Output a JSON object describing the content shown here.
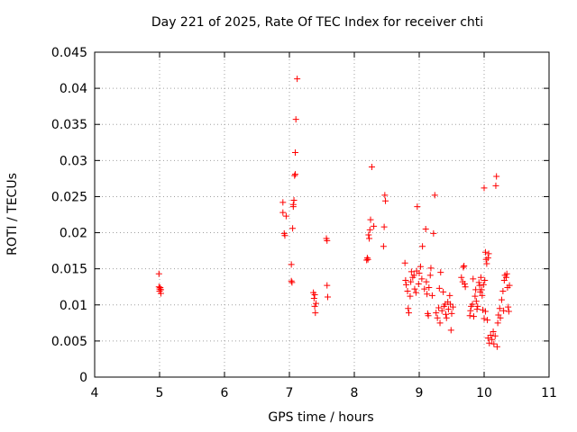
{
  "chart_data": {
    "type": "scatter",
    "title": "Day 221 of 2025, Rate Of TEC Index for receiver chti",
    "xlabel": "GPS time / hours",
    "ylabel": "ROTI / TECUs",
    "xlim": [
      4,
      11
    ],
    "ylim": [
      0,
      0.045
    ],
    "x_ticks": [
      "4",
      "5",
      "6",
      "7",
      "8",
      "9",
      "10",
      "11"
    ],
    "y_ticks": [
      "0",
      "0.005",
      "0.01",
      "0.015",
      "0.02",
      "0.025",
      "0.03",
      "0.035",
      "0.04",
      "0.045"
    ],
    "grid": true,
    "marker": "+",
    "color": "#ff0000",
    "points": [
      [
        4.99,
        0.0143
      ],
      [
        4.99,
        0.0125
      ],
      [
        5.0,
        0.0122
      ],
      [
        5.0,
        0.0119
      ],
      [
        5.01,
        0.0124
      ],
      [
        5.02,
        0.0116
      ],
      [
        5.02,
        0.0121
      ],
      [
        6.9,
        0.0242
      ],
      [
        6.9,
        0.0228
      ],
      [
        6.92,
        0.0199
      ],
      [
        6.93,
        0.0196
      ],
      [
        6.95,
        0.0223
      ],
      [
        7.03,
        0.0156
      ],
      [
        7.03,
        0.0133
      ],
      [
        7.04,
        0.0131
      ],
      [
        7.05,
        0.0206
      ],
      [
        7.06,
        0.0236
      ],
      [
        7.06,
        0.0239
      ],
      [
        7.07,
        0.0245
      ],
      [
        7.08,
        0.0279
      ],
      [
        7.09,
        0.0281
      ],
      [
        7.09,
        0.0311
      ],
      [
        7.1,
        0.0357
      ],
      [
        7.12,
        0.0413
      ],
      [
        7.37,
        0.0117
      ],
      [
        7.38,
        0.0109
      ],
      [
        7.39,
        0.0114
      ],
      [
        7.39,
        0.0098
      ],
      [
        7.4,
        0.0089
      ],
      [
        7.41,
        0.0102
      ],
      [
        7.57,
        0.0192
      ],
      [
        7.58,
        0.0189
      ],
      [
        7.58,
        0.0127
      ],
      [
        7.59,
        0.0111
      ],
      [
        8.19,
        0.0162
      ],
      [
        8.2,
        0.0165
      ],
      [
        8.21,
        0.0163
      ],
      [
        8.22,
        0.0197
      ],
      [
        8.23,
        0.0192
      ],
      [
        8.24,
        0.0204
      ],
      [
        8.25,
        0.0218
      ],
      [
        8.27,
        0.0291
      ],
      [
        8.3,
        0.0209
      ],
      [
        8.45,
        0.0181
      ],
      [
        8.46,
        0.0208
      ],
      [
        8.47,
        0.0252
      ],
      [
        8.48,
        0.0244
      ],
      [
        8.78,
        0.0158
      ],
      [
        8.79,
        0.0134
      ],
      [
        8.8,
        0.0128
      ],
      [
        8.82,
        0.0119
      ],
      [
        8.83,
        0.0095
      ],
      [
        8.84,
        0.0089
      ],
      [
        8.86,
        0.0112
      ],
      [
        8.87,
        0.0132
      ],
      [
        8.88,
        0.0146
      ],
      [
        8.9,
        0.0138
      ],
      [
        8.92,
        0.0141
      ],
      [
        8.93,
        0.0122
      ],
      [
        8.95,
        0.0117
      ],
      [
        8.96,
        0.0147
      ],
      [
        8.97,
        0.0236
      ],
      [
        8.99,
        0.0129
      ],
      [
        9.0,
        0.0144
      ],
      [
        9.02,
        0.0153
      ],
      [
        9.04,
        0.0136
      ],
      [
        9.05,
        0.0181
      ],
      [
        9.08,
        0.0122
      ],
      [
        9.1,
        0.0205
      ],
      [
        9.11,
        0.0132
      ],
      [
        9.12,
        0.0115
      ],
      [
        9.13,
        0.0088
      ],
      [
        9.14,
        0.0085
      ],
      [
        9.15,
        0.0124
      ],
      [
        9.17,
        0.0141
      ],
      [
        9.18,
        0.0151
      ],
      [
        9.2,
        0.0113
      ],
      [
        9.22,
        0.0199
      ],
      [
        9.24,
        0.0252
      ],
      [
        9.26,
        0.0089
      ],
      [
        9.28,
        0.0082
      ],
      [
        9.3,
        0.0096
      ],
      [
        9.31,
        0.0123
      ],
      [
        9.32,
        0.0075
      ],
      [
        9.33,
        0.0145
      ],
      [
        9.35,
        0.0092
      ],
      [
        9.37,
        0.0118
      ],
      [
        9.38,
        0.0098
      ],
      [
        9.4,
        0.0101
      ],
      [
        9.41,
        0.0087
      ],
      [
        9.42,
        0.0082
      ],
      [
        9.44,
        0.0104
      ],
      [
        9.45,
        0.0094
      ],
      [
        9.47,
        0.0113
      ],
      [
        9.48,
        0.0101
      ],
      [
        9.49,
        0.0065
      ],
      [
        9.5,
        0.0088
      ],
      [
        9.52,
        0.0097
      ],
      [
        9.65,
        0.0138
      ],
      [
        9.67,
        0.0132
      ],
      [
        9.68,
        0.0152
      ],
      [
        9.69,
        0.0154
      ],
      [
        9.7,
        0.0129
      ],
      [
        9.71,
        0.0125
      ],
      [
        9.78,
        0.0085
      ],
      [
        9.79,
        0.0092
      ],
      [
        9.8,
        0.0098
      ],
      [
        9.82,
        0.0101
      ],
      [
        9.83,
        0.0136
      ],
      [
        9.84,
        0.0084
      ],
      [
        9.86,
        0.0112
      ],
      [
        9.87,
        0.0121
      ],
      [
        9.88,
        0.0105
      ],
      [
        9.89,
        0.0094
      ],
      [
        9.9,
        0.0098
      ],
      [
        9.92,
        0.0131
      ],
      [
        9.93,
        0.0127
      ],
      [
        9.94,
        0.0118
      ],
      [
        9.95,
        0.0138
      ],
      [
        9.96,
        0.0121
      ],
      [
        9.97,
        0.0113
      ],
      [
        9.98,
        0.0093
      ],
      [
        9.99,
        0.0128
      ],
      [
        10.0,
        0.0081
      ],
      [
        10.0,
        0.0262
      ],
      [
        10.01,
        0.0134
      ],
      [
        10.02,
        0.0173
      ],
      [
        10.02,
        0.0091
      ],
      [
        10.03,
        0.0163
      ],
      [
        10.04,
        0.0157
      ],
      [
        10.05,
        0.0079
      ],
      [
        10.06,
        0.0165
      ],
      [
        10.06,
        0.0054
      ],
      [
        10.07,
        0.0171
      ],
      [
        10.08,
        0.0047
      ],
      [
        10.1,
        0.0058
      ],
      [
        10.12,
        0.0052
      ],
      [
        10.14,
        0.0063
      ],
      [
        10.15,
        0.0046
      ],
      [
        10.17,
        0.0057
      ],
      [
        10.18,
        0.0265
      ],
      [
        10.19,
        0.0278
      ],
      [
        10.2,
        0.0042
      ],
      [
        10.21,
        0.0075
      ],
      [
        10.22,
        0.0086
      ],
      [
        10.24,
        0.0095
      ],
      [
        10.25,
        0.0082
      ],
      [
        10.27,
        0.0107
      ],
      [
        10.29,
        0.0119
      ],
      [
        10.3,
        0.0092
      ],
      [
        10.31,
        0.0134
      ],
      [
        10.32,
        0.0141
      ],
      [
        10.34,
        0.0138
      ],
      [
        10.35,
        0.0143
      ],
      [
        10.36,
        0.0124
      ],
      [
        10.37,
        0.0097
      ],
      [
        10.38,
        0.0091
      ],
      [
        10.39,
        0.0127
      ]
    ]
  }
}
